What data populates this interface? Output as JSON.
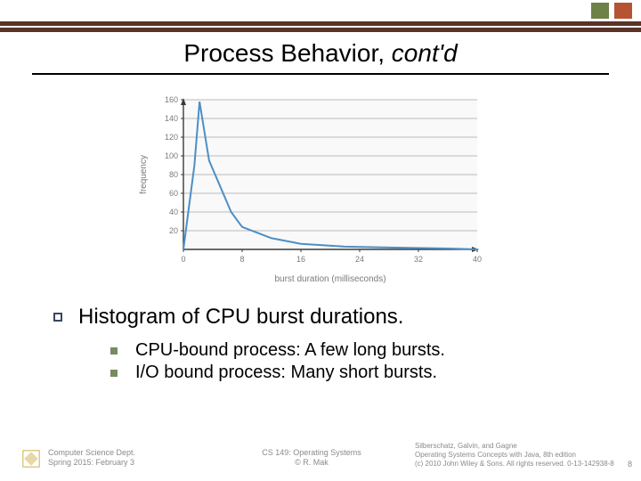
{
  "colors": {
    "top_bar": "#5a3227",
    "accent1": "#6e8148",
    "accent2": "#b55432",
    "text": "#000000",
    "muted": "#8a8a8a",
    "grid": "#bababa",
    "axis": "#3a3a3a",
    "line": "#4c8fc6",
    "bullet_open": "#38495f",
    "bullet_filled": "#778a62"
  },
  "title": {
    "main": "Process Behavior, ",
    "italic": "cont'd"
  },
  "chart": {
    "type": "line",
    "xlabel": "burst duration (milliseconds)",
    "ylabel": "frequency",
    "xlim": [
      0,
      40
    ],
    "ylim": [
      0,
      160
    ],
    "xticks": [
      0,
      8,
      16,
      24,
      32,
      40
    ],
    "yticks": [
      20,
      40,
      60,
      80,
      100,
      120,
      140,
      160
    ],
    "points_x": [
      0,
      1.5,
      2.2,
      3.5,
      6.5,
      8,
      12,
      16,
      22,
      28,
      36,
      40
    ],
    "points_y": [
      0,
      90,
      158,
      95,
      40,
      24,
      12,
      6,
      3,
      2,
      1,
      0
    ],
    "line_width": 2,
    "label_fontsize": 10,
    "tick_fontsize": 9,
    "label_color": "#7a7a7a",
    "background": "#f9f9f9"
  },
  "main_bullet": "Histogram of CPU burst durations.",
  "sub_bullets": [
    "CPU-bound process: A few long bursts.",
    "I/O bound process: Many short bursts."
  ],
  "footer": {
    "left1": "Computer Science Dept.",
    "left2": "Spring 2015: February 3",
    "mid1": "CS 149: Operating Systems",
    "mid2": "© R. Mak",
    "right1": "Silberschatz, Galvin, and Gagne",
    "right2": "Operating Systems Concepts with Java, 8th edition",
    "right3": "(c) 2010 John Wiley & Sons. All rights reserved. 0-13-142938-8",
    "page": "8"
  },
  "logo_label": "San José State University"
}
